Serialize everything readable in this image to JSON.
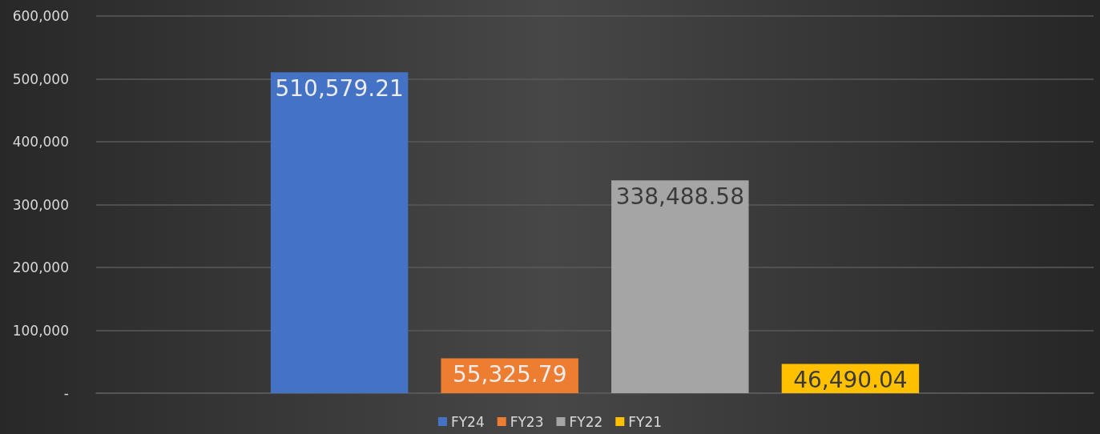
{
  "chart_data": {
    "type": "bar",
    "categories": [
      null
    ],
    "series": [
      {
        "name": "FY24",
        "color": "#4472c4",
        "values": [
          510579.21
        ],
        "value_labels": [
          "510,579.21"
        ]
      },
      {
        "name": "FY23",
        "color": "#ed7d31",
        "values": [
          55325.79
        ],
        "value_labels": [
          "55,325.79"
        ]
      },
      {
        "name": "FY22",
        "color": "#a5a5a5",
        "values": [
          338488.58
        ],
        "value_labels": [
          "338,488.58"
        ]
      },
      {
        "name": "FY21",
        "color": "#ffc000",
        "values": [
          46490.04
        ],
        "value_labels": [
          "46,490.04"
        ]
      }
    ],
    "ylim": [
      0,
      600000
    ],
    "yticks": [
      {
        "value": 0,
        "label": "-"
      },
      {
        "value": 100000,
        "label": "100,000"
      },
      {
        "value": 200000,
        "label": "200,000"
      },
      {
        "value": 300000,
        "label": "300,000"
      },
      {
        "value": 400000,
        "label": "400,000"
      },
      {
        "value": 500000,
        "label": "500,000"
      },
      {
        "value": 600000,
        "label": "600,000"
      }
    ],
    "grid": "y",
    "legend": "bottom"
  }
}
